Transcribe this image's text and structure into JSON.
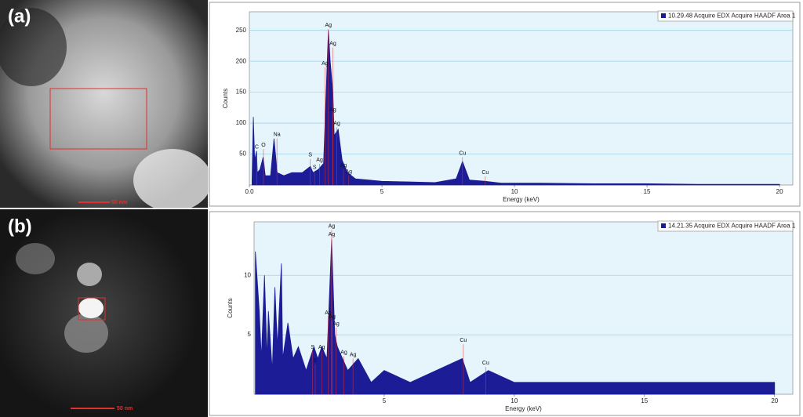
{
  "panels": [
    {
      "label": "(a)",
      "scale_bar": "50 nm"
    },
    {
      "label": "(b)",
      "scale_bar": "50 nm"
    }
  ],
  "chart_data": [
    {
      "type": "area",
      "xlabel": "Energy (keV)",
      "ylabel": "Counts",
      "xlim": [
        0,
        20.5
      ],
      "ylim": [
        0,
        280
      ],
      "xticks": [
        {
          "value": 0,
          "label": "0.0"
        },
        5,
        10,
        15,
        20
      ],
      "yticks": [
        50,
        100,
        150,
        200,
        250
      ],
      "grid": true,
      "legend": "upper right",
      "x": [
        0.1,
        0.15,
        0.2,
        0.27,
        0.3,
        0.4,
        0.52,
        0.6,
        0.8,
        0.93,
        1.05,
        1.3,
        1.6,
        2.0,
        2.3,
        2.4,
        2.6,
        2.8,
        2.98,
        3.05,
        3.15,
        3.2,
        3.35,
        3.5,
        3.7,
        4.0,
        4.5,
        5.0,
        6.0,
        7.0,
        7.8,
        8.04,
        8.3,
        8.9,
        9.5,
        11,
        13,
        15,
        17,
        20
      ],
      "series": [
        {
          "name": "10.29.48 Acquire EDX Acquire HAADF Area 1",
          "color": "#1c1c96",
          "values": [
            5,
            110,
            40,
            55,
            20,
            25,
            45,
            15,
            15,
            75,
            20,
            15,
            20,
            20,
            30,
            20,
            25,
            35,
            250,
            200,
            150,
            80,
            90,
            40,
            20,
            10,
            8,
            6,
            5,
            4,
            10,
            38,
            8,
            6,
            3,
            3,
            2,
            2,
            1,
            1
          ]
        }
      ],
      "annotations": [
        {
          "text": "C",
          "x": 0.28,
          "y": 55
        },
        {
          "text": "O",
          "x": 0.53,
          "y": 58
        },
        {
          "text": "Na",
          "x": 1.04,
          "y": 75
        },
        {
          "text": "S",
          "x": 2.3,
          "y": 42
        },
        {
          "text": "S",
          "x": 2.46,
          "y": 22
        },
        {
          "text": "Ag",
          "x": 2.65,
          "y": 34
        },
        {
          "text": "Ag",
          "x": 2.98,
          "y": 252
        },
        {
          "text": "Ag",
          "x": 3.15,
          "y": 222
        },
        {
          "text": "Ag",
          "x": 2.85,
          "y": 190
        },
        {
          "text": "Ag",
          "x": 3.15,
          "y": 115
        },
        {
          "text": "Ag",
          "x": 3.3,
          "y": 93
        },
        {
          "text": "Ag",
          "x": 3.55,
          "y": 25
        },
        {
          "text": "Ag",
          "x": 3.75,
          "y": 15
        },
        {
          "text": "Cu",
          "x": 8.04,
          "y": 45
        },
        {
          "text": "Cu",
          "x": 8.9,
          "y": 14
        }
      ]
    },
    {
      "type": "area",
      "xlabel": "Energy (keV)",
      "ylabel": "Counts",
      "xlim": [
        0,
        20.7
      ],
      "ylim": [
        0,
        14.5
      ],
      "xticks": [
        5,
        10,
        15,
        20
      ],
      "yticks": [
        5,
        10
      ],
      "grid": true,
      "legend": "upper right",
      "x": [
        0.05,
        0.2,
        0.28,
        0.4,
        0.5,
        0.55,
        0.7,
        0.8,
        0.9,
        1.05,
        1.1,
        1.3,
        1.5,
        1.7,
        2.0,
        2.3,
        2.45,
        2.6,
        2.8,
        2.98,
        3.1,
        3.2,
        3.4,
        3.6,
        4.0,
        4.5,
        5.0,
        6,
        7,
        8.0,
        8.3,
        9,
        10,
        11,
        12,
        13,
        14,
        16,
        18,
        20
      ],
      "series": [
        {
          "name": "14.21.35 Acquire EDX Acquire HAADF Area 1",
          "color": "#1c1c96",
          "values": [
            12,
            7,
            3,
            10,
            3,
            7,
            2,
            9,
            4,
            11,
            3,
            6,
            3,
            4,
            2,
            4,
            3,
            4,
            3,
            13,
            5,
            4,
            3,
            2,
            3,
            1,
            2,
            1,
            2,
            3,
            1,
            2,
            1,
            1,
            1,
            1,
            1,
            1,
            1,
            1
          ]
        }
      ],
      "annotations": [
        {
          "text": "Ag",
          "x": 2.98,
          "y": 13.8
        },
        {
          "text": "Ag",
          "x": 2.98,
          "y": 13.1
        },
        {
          "text": "Ag",
          "x": 2.85,
          "y": 6.5
        },
        {
          "text": "Ag",
          "x": 3.0,
          "y": 6.2
        },
        {
          "text": "Ag",
          "x": 3.15,
          "y": 5.6
        },
        {
          "text": "S",
          "x": 2.25,
          "y": 3.6
        },
        {
          "text": "Ag",
          "x": 2.6,
          "y": 3.6
        },
        {
          "text": "S",
          "x": 2.35,
          "y": 2.5
        },
        {
          "text": "Ag",
          "x": 3.45,
          "y": 3.2
        },
        {
          "text": "Ag",
          "x": 3.8,
          "y": 3.0
        },
        {
          "text": "Cu",
          "x": 8.04,
          "y": 4.2
        },
        {
          "text": "Cu",
          "x": 8.9,
          "y": 2.3
        }
      ]
    }
  ]
}
